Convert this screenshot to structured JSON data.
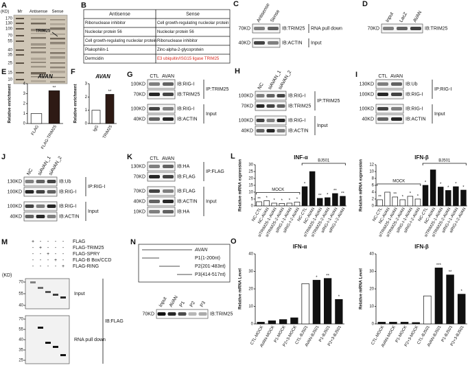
{
  "panels": {
    "A": {
      "letter": "A",
      "kd": "(KD)",
      "lanes": [
        "Mr",
        "Antisense",
        "Sense"
      ],
      "markers": [
        "170",
        "130",
        "100",
        "70",
        "55",
        "40",
        "35",
        "25",
        "15",
        "10"
      ],
      "band": "TRIM25"
    },
    "B": {
      "letter": "B",
      "header": [
        "Antisense",
        "Sense"
      ],
      "rows": [
        {
          "antisense": "Ribonuclease inhibitor",
          "sense": "Cell growth-regulating nucleolar protein"
        },
        {
          "antisense": "Nucleolar protein 56",
          "sense": "Nucleolar protein 56"
        },
        {
          "antisense": "Cell growth-regulating nucleolar protein",
          "sense": "Ribonuclease inhibitor"
        },
        {
          "antisense": "Plakophilin-1",
          "sense": "Zinc-alpha-2-glycoprotein"
        },
        {
          "antisense": "Dermcidin",
          "sense": "E3 ubiquitin/ISG15 ligase TRIM25",
          "sense_color": "#d9261c"
        }
      ]
    },
    "C": {
      "letter": "C",
      "lanes": [
        "Antisense",
        "Sense"
      ],
      "groups": [
        {
          "label": "RNA pull down",
          "blots": [
            {
              "kd": "70KD",
              "ib": "IB:TRIM25"
            }
          ]
        },
        {
          "label": "Input",
          "blots": [
            {
              "kd": "40KD",
              "ib": "IB:ACTIN"
            }
          ]
        }
      ]
    },
    "D": {
      "letter": "D",
      "lanes": [
        "Input",
        "LacZ",
        "AVAN"
      ],
      "groups": [
        {
          "blots": [
            {
              "kd": "70KD",
              "ib": "IB:TRIM25"
            }
          ]
        }
      ]
    },
    "E": {
      "letter": "E",
      "title": "AVAN",
      "ylabel": "Relative enrichment",
      "categories": [
        "FLAG",
        "FLAG-TRIM25"
      ],
      "values": [
        1.0,
        3.3
      ],
      "colors": [
        "#ffffff",
        "#2e1a14"
      ],
      "sig": [
        null,
        "**"
      ],
      "ylim": [
        0,
        4
      ],
      "yticks": [
        0,
        1,
        2,
        3,
        4
      ]
    },
    "F": {
      "letter": "F",
      "title": "AVAN",
      "ylabel": "Relative enrichment",
      "categories": [
        "IgG",
        "TRIM25"
      ],
      "values": [
        1.0,
        2.2
      ],
      "colors": [
        "#ffffff",
        "#2e1a14"
      ],
      "sig": [
        null,
        "**"
      ],
      "ylim": [
        0,
        3
      ],
      "yticks": [
        0,
        1,
        2,
        3
      ]
    },
    "G": {
      "letter": "G",
      "lanes": [
        "CTL",
        "AVAN"
      ],
      "groups": [
        {
          "label": "IP:TRIM25",
          "blots": [
            {
              "kd": "100KD",
              "ib": "IB:RIG-I"
            },
            {
              "kd": "70KD",
              "ib": "IB:TRIM25"
            }
          ]
        },
        {
          "label": "Input",
          "blots": [
            {
              "kd": "100KD",
              "ib": "IB:RIG-I"
            },
            {
              "kd": "40KD",
              "ib": "IB:ACTIN"
            }
          ]
        }
      ]
    },
    "H": {
      "letter": "H",
      "lanes": [
        "NC",
        "siAVAN_1",
        "siAVAN_2"
      ],
      "groups": [
        {
          "label": "IP:TRIM25",
          "blots": [
            {
              "kd": "100KD",
              "ib": "IB:RIG-I"
            },
            {
              "kd": "70KD",
              "ib": "IB:TRIM25"
            }
          ]
        },
        {
          "label": "Input",
          "blots": [
            {
              "kd": "100KD",
              "ib": "IB:RIG-I"
            },
            {
              "kd": "40KD",
              "ib": "IB:ACTIN"
            }
          ]
        }
      ]
    },
    "I": {
      "letter": "I",
      "lanes": [
        "CTL",
        "AVAN"
      ],
      "groups": [
        {
          "label": "IP:RIG-I",
          "blots": [
            {
              "kd": "130KD",
              "ib": "IB:Ub"
            },
            {
              "kd": "100KD",
              "ib": "IB:RIG-I"
            }
          ]
        },
        {
          "label": "Input",
          "blots": [
            {
              "kd": "100KD",
              "ib": "IB:RIG-I"
            },
            {
              "kd": "40KD",
              "ib": "IB:ACTIN"
            }
          ]
        }
      ]
    },
    "J": {
      "letter": "J",
      "lanes": [
        "NC",
        "siAVAN_1",
        "siAVAN_2"
      ],
      "groups": [
        {
          "label": "IP:RIG-I",
          "blots": [
            {
              "kd": "130KD",
              "ib": "IB:Ub"
            },
            {
              "kd": "100KD",
              "ib": "IB:RIG-I"
            }
          ]
        },
        {
          "label": "Input",
          "blots": [
            {
              "kd": "100KD",
              "ib": "IB:RIG-I"
            },
            {
              "kd": "40KD",
              "ib": "IB:ACTIN"
            }
          ]
        }
      ]
    },
    "K": {
      "letter": "K",
      "lanes": [
        "CTL",
        "AVAN"
      ],
      "groups": [
        {
          "label": "IP:FLAG",
          "blots": [
            {
              "kd": "130KD",
              "ib": "IB:HA"
            },
            {
              "kd": "70KD",
              "ib": "IB:FLAG"
            }
          ]
        },
        {
          "label": "Input",
          "blots": [
            {
              "kd": "70KD",
              "ib": "IB:FLAG"
            },
            {
              "kd": "40KD",
              "ib": "IB:ACTIN"
            },
            {
              "kd": "10KD",
              "ib": "IB:HA"
            }
          ]
        }
      ]
    },
    "L": {
      "letter": "L",
      "charts": [
        {
          "title": "INF-α",
          "ylabel": "Relative mRNA expression",
          "ylim": [
            0,
            30
          ],
          "yticks": [
            0,
            5,
            10,
            15,
            20,
            25,
            30
          ],
          "groups": [
            {
              "label": "MOCK",
              "color": "#ffffff",
              "categories": [
                "NC-CTL",
                "NC-AVAN",
                "siTRIM25-1-AVAN",
                "siTRIM25-2-AVAN",
                "siRIG-I-1-AVAN",
                "siRIG-I-2-AVAN"
              ],
              "values": [
                3,
                3.8,
                2,
                1.8,
                2,
                2.8
              ],
              "sig": [
                "**",
                "*",
                "*",
                "*",
                "*",
                "*"
              ]
            },
            {
              "label": "BJ501",
              "color": "#111111",
              "categories": [
                "NC-CTL",
                "NC-AVAN",
                "siTRIM25-1-AVAN",
                "siTRIM25-2-AVAN",
                "siRIG-I-1-AVAN",
                "siRIG-I-2-AVAN"
              ],
              "values": [
                14,
                25,
                5.5,
                6,
                9,
                7
              ],
              "sig": [
                "*",
                null,
                "**",
                "*",
                "**",
                "**"
              ]
            }
          ]
        },
        {
          "title": "IFN-β",
          "ylabel": "Relative mRNA expression",
          "ylim": [
            0,
            12
          ],
          "yticks": [
            0,
            2,
            4,
            6,
            8,
            10,
            12
          ],
          "groups": [
            {
              "label": "MOCK",
              "color": "#ffffff",
              "categories": [
                "NC-CTL",
                "NC-AVAN",
                "siTRIM25-1-AVAN",
                "siTRIM25-2-AVAN",
                "siRIG-I-1-AVAN",
                "siRIG-I-2-AVAN"
              ],
              "values": [
                1.8,
                4,
                2.6,
                1.8,
                2.8,
                2
              ],
              "sig": [
                "**",
                null,
                "**",
                "*",
                "*",
                "*"
              ]
            },
            {
              "label": "BJ501",
              "color": "#111111",
              "categories": [
                "NC-CTL",
                "NC-AVAN",
                "siTRIM25-1-AVAN",
                "siTRIM25-2-AVAN",
                "siRIG-I-1-AVAN",
                "siRIG-I-2-AVAN"
              ],
              "values": [
                6,
                10.5,
                5.5,
                4.5,
                5.6,
                4.6
              ],
              "sig": [
                "*",
                null,
                "*",
                "*",
                "*",
                "*"
              ]
            }
          ]
        }
      ]
    },
    "M": {
      "letter": "M",
      "rows": [
        {
          "label": "FLAG",
          "signs": [
            "+",
            "-",
            "-",
            "-",
            "-"
          ]
        },
        {
          "label": "FLAG-TRIM25",
          "signs": [
            "-",
            "+",
            "-",
            "-",
            "-"
          ]
        },
        {
          "label": "FLAG-SPRY",
          "signs": [
            "-",
            "-",
            "+",
            "-",
            "-"
          ]
        },
        {
          "label": "FLAG-B Box/CCD",
          "signs": [
            "-",
            "-",
            "-",
            "+",
            "-"
          ]
        },
        {
          "label": "FLAG-RING",
          "signs": [
            "-",
            "-",
            "-",
            "-",
            "+"
          ]
        }
      ],
      "kd": "(KD)",
      "input_markers": [
        "70",
        "55",
        "40"
      ],
      "pulldown_markers": [
        "70",
        "55",
        "40",
        "35",
        "25"
      ],
      "input": "Input",
      "pulldown": "RNA pull down",
      "ib": "IB:FLAG"
    },
    "N": {
      "letter": "N",
      "fragments": [
        "AVAN",
        "P1(1-200nt)",
        "P2(201-483nt)",
        "P3(414-517nt)"
      ],
      "lanes": [
        "Input",
        "AVAN",
        "P1",
        "P2",
        "P3"
      ],
      "kd": "70KD",
      "ib": "IB:TRIM25"
    },
    "O": {
      "letter": "O",
      "charts": [
        {
          "title": "IFN-α",
          "ylabel": "Relative mRNA Level",
          "ylim": [
            0,
            40
          ],
          "yticks": [
            0,
            10,
            20,
            30,
            40
          ],
          "categories": [
            "CTL-MOCK",
            "AVAN-MOCK",
            "P1-MOCK",
            "P2+3-MOCK",
            "CTL-BJ501",
            "AVAN-BJ501",
            "P1-BJ501",
            "P2+3-BJ501"
          ],
          "values": [
            1,
            1.8,
            2.5,
            3.5,
            23,
            25,
            26,
            14
          ],
          "colors": [
            "#111111",
            "#111111",
            "#111111",
            "#111111",
            "#ffffff",
            "#111111",
            "#111111",
            "#111111"
          ],
          "sig": [
            null,
            null,
            null,
            null,
            null,
            "*",
            "**",
            "*"
          ]
        },
        {
          "title": "IFN-β",
          "ylabel": "Relative mRNA Level",
          "ylim": [
            0,
            40
          ],
          "yticks": [
            0,
            10,
            20,
            30,
            40
          ],
          "categories": [
            "CTL-MOCK",
            "AVAN-MOCK",
            "P1-MOCK",
            "P2+3-MOCK",
            "CTL-BJ501",
            "AVAN-BJ501",
            "P1-BJ501",
            "P2+3-BJ501"
          ],
          "values": [
            1,
            1,
            1,
            0.8,
            16,
            32,
            28,
            17
          ],
          "colors": [
            "#111111",
            "#111111",
            "#111111",
            "#111111",
            "#ffffff",
            "#111111",
            "#111111",
            "#111111"
          ],
          "sig": [
            null,
            null,
            null,
            null,
            null,
            "***",
            "**",
            "*"
          ]
        }
      ]
    }
  }
}
